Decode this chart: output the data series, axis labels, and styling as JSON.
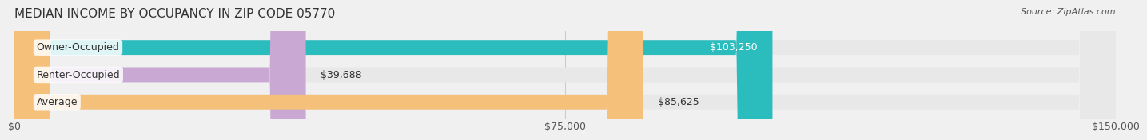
{
  "title": "MEDIAN INCOME BY OCCUPANCY IN ZIP CODE 05770",
  "source": "Source: ZipAtlas.com",
  "categories": [
    "Owner-Occupied",
    "Renter-Occupied",
    "Average"
  ],
  "values": [
    103250,
    39688,
    85625
  ],
  "bar_colors": [
    "#2bbcbe",
    "#c9a8d4",
    "#f5c07a"
  ],
  "label_texts": [
    "$103,250",
    "$39,688",
    "$85,625"
  ],
  "xlim": [
    0,
    150000
  ],
  "xticks": [
    0,
    75000,
    150000
  ],
  "xtick_labels": [
    "$0",
    "$75,000",
    "$150,000"
  ],
  "background_color": "#f0f0f0",
  "bar_background_color": "#e8e8e8",
  "title_fontsize": 11,
  "source_fontsize": 8,
  "label_fontsize": 9,
  "tick_fontsize": 9,
  "category_fontsize": 9
}
